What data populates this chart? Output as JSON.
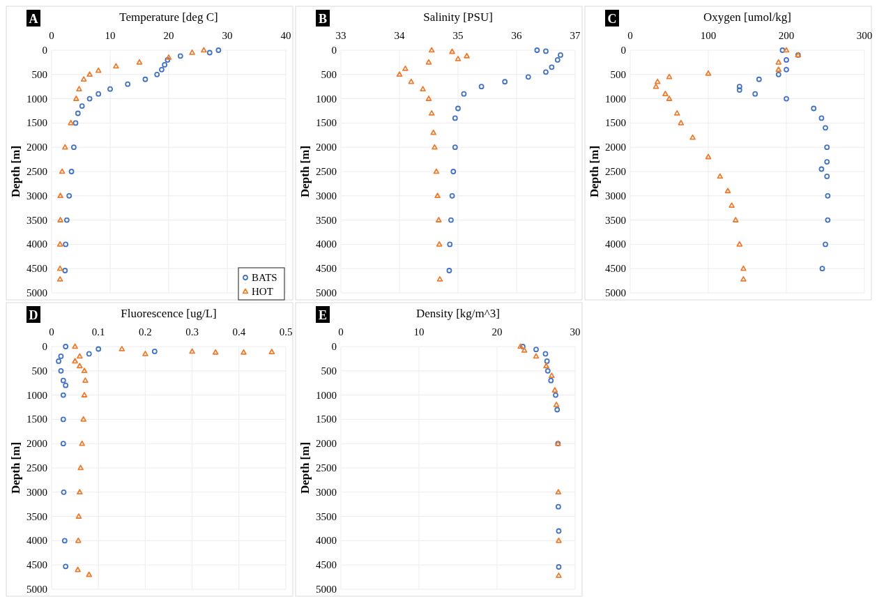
{
  "chart_data": [
    {
      "type": "scatter",
      "title": "Temperature [deg C]",
      "ylabel": "Depth [m]",
      "annotations": [
        "A"
      ],
      "xlim": [
        0,
        40
      ],
      "xticks": [
        0,
        10,
        20,
        30,
        40
      ],
      "ylim": [
        5000,
        0
      ],
      "yticks": [
        0,
        500,
        1000,
        1500,
        2000,
        2500,
        3000,
        3500,
        4000,
        4500,
        5000
      ],
      "grid": true,
      "legend": "bottom right",
      "series": [
        {
          "name": "BATS",
          "color": "#4472c4",
          "marker": "circle",
          "x": [
            28.5,
            27,
            22,
            19.8,
            19.3,
            18.8,
            18,
            16,
            13,
            10,
            8,
            6.5,
            5.2,
            4.5,
            4.1,
            3.8,
            3.4,
            3.0,
            2.6,
            2.4,
            2.3
          ],
          "values": [
            0,
            50,
            120,
            200,
            300,
            400,
            500,
            600,
            700,
            800,
            900,
            1000,
            1150,
            1300,
            1500,
            2000,
            2500,
            3000,
            3500,
            4000,
            4540
          ]
        },
        {
          "name": "HOT",
          "color": "#ed7d31",
          "marker": "triangle",
          "x": [
            26,
            24,
            20,
            15,
            11,
            8,
            6.5,
            5.5,
            4.7,
            4.2,
            3.3,
            2.3,
            1.8,
            1.5,
            1.5,
            1.45,
            1.45,
            1.45
          ],
          "values": [
            0,
            50,
            150,
            250,
            330,
            420,
            500,
            600,
            800,
            1000,
            1500,
            2000,
            2500,
            3000,
            3500,
            4000,
            4500,
            4720
          ]
        }
      ]
    },
    {
      "type": "scatter",
      "title": "Salinity [PSU]",
      "ylabel": "Depth [m]",
      "annotations": [
        "B"
      ],
      "xlim": [
        33,
        37
      ],
      "xticks": [
        33,
        34,
        35,
        36,
        37
      ],
      "ylim": [
        5000,
        0
      ],
      "yticks": [
        0,
        500,
        1000,
        1500,
        2000,
        2500,
        3000,
        3500,
        4000,
        4500,
        5000
      ],
      "grid": true,
      "series": [
        {
          "color": "#4472c4",
          "marker": "circle",
          "x": [
            36.35,
            36.5,
            36.75,
            36.7,
            36.6,
            36.5,
            36.2,
            35.8,
            35.4,
            35.1,
            35.0,
            34.95,
            34.95,
            34.92,
            34.9,
            34.88,
            34.86,
            34.85
          ],
          "values": [
            0,
            20,
            100,
            200,
            350,
            450,
            550,
            650,
            750,
            900,
            1200,
            1400,
            2000,
            2500,
            3000,
            3500,
            4000,
            4540
          ]
        },
        {
          "color": "#ed7d31",
          "marker": "triangle",
          "x": [
            34.55,
            34.9,
            35.15,
            35.0,
            34.5,
            34.1,
            34.0,
            34.2,
            34.4,
            34.5,
            34.55,
            34.58,
            34.6,
            34.63,
            34.65,
            34.67,
            34.68,
            34.69
          ],
          "values": [
            0,
            30,
            120,
            180,
            250,
            380,
            500,
            650,
            800,
            1000,
            1300,
            1700,
            2000,
            2500,
            3000,
            3500,
            4000,
            4720
          ]
        }
      ]
    },
    {
      "type": "scatter",
      "title": "Oxygen [umol/kg]",
      "ylabel": "Depth [m]",
      "annotations": [
        "C"
      ],
      "xlim": [
        0,
        300
      ],
      "xticks": [
        0,
        100,
        200,
        300
      ],
      "ylim": [
        5000,
        0
      ],
      "yticks": [
        0,
        500,
        1000,
        1500,
        2000,
        2500,
        3000,
        3500,
        4000,
        4500,
        5000
      ],
      "grid": true,
      "series": [
        {
          "color": "#4472c4",
          "marker": "circle",
          "x": [
            195,
            215,
            200,
            200,
            190,
            165,
            140,
            140,
            160,
            200,
            235,
            245,
            250,
            252,
            252,
            245,
            252,
            253,
            253,
            250,
            246
          ],
          "values": [
            0,
            100,
            200,
            400,
            500,
            600,
            750,
            820,
            900,
            1000,
            1200,
            1400,
            1600,
            2000,
            2300,
            2450,
            2600,
            3000,
            3500,
            4000,
            4500
          ]
        },
        {
          "color": "#ed7d31",
          "marker": "triangle",
          "x": [
            200,
            215,
            190,
            190,
            100,
            50,
            35,
            33,
            45,
            50,
            60,
            65,
            80,
            100,
            115,
            125,
            130,
            135,
            140,
            145,
            145
          ],
          "values": [
            0,
            100,
            250,
            400,
            480,
            550,
            650,
            750,
            900,
            1000,
            1300,
            1500,
            1800,
            2200,
            2600,
            2900,
            3200,
            3500,
            4000,
            4500,
            4720
          ]
        }
      ]
    },
    {
      "type": "scatter",
      "title": "Fluorescence [ug/L]",
      "ylabel": "Depth [m]",
      "annotations": [
        "D"
      ],
      "xlim": [
        0,
        0.5
      ],
      "xticks": [
        0,
        0.1,
        0.2,
        0.3,
        0.4,
        0.5
      ],
      "ylim": [
        5000,
        0
      ],
      "yticks": [
        0,
        500,
        1000,
        1500,
        2000,
        2500,
        3000,
        3500,
        4000,
        4500,
        5000
      ],
      "grid": true,
      "series": [
        {
          "color": "#4472c4",
          "marker": "circle",
          "x": [
            0.03,
            0.1,
            0.22,
            0.08,
            0.02,
            0.015,
            0.02,
            0.025,
            0.03,
            0.025,
            0.025,
            0.025,
            0.026,
            0.028,
            0.03
          ],
          "values": [
            0,
            50,
            100,
            150,
            200,
            300,
            500,
            700,
            800,
            1000,
            1500,
            2000,
            3000,
            4000,
            4530
          ]
        },
        {
          "color": "#ed7d31",
          "marker": "triangle",
          "x": [
            0.05,
            0.15,
            0.3,
            0.35,
            0.41,
            0.47,
            0.2,
            0.06,
            0.05,
            0.06,
            0.07,
            0.072,
            0.07,
            0.068,
            0.065,
            0.062,
            0.06,
            0.058,
            0.057,
            0.056,
            0.08
          ],
          "values": [
            0,
            50,
            100,
            120,
            120,
            110,
            150,
            200,
            300,
            400,
            500,
            700,
            1000,
            1500,
            2000,
            2500,
            3000,
            3500,
            4000,
            4600,
            4700
          ]
        }
      ]
    },
    {
      "type": "scatter",
      "title": "Density [kg/m^3]",
      "ylabel": "Depth [m]",
      "annotations": [
        "E"
      ],
      "xlim": [
        0,
        30
      ],
      "xticks": [
        0,
        10,
        20,
        30
      ],
      "ylim": [
        5000,
        0
      ],
      "yticks": [
        0,
        500,
        1000,
        1500,
        2000,
        2500,
        3000,
        3500,
        4000,
        4500,
        5000
      ],
      "grid": true,
      "series": [
        {
          "color": "#4472c4",
          "marker": "circle",
          "x": [
            23.3,
            25,
            26.2,
            26.4,
            26.5,
            26.9,
            27.5,
            27.7,
            27.8,
            27.85,
            27.9,
            27.9
          ],
          "values": [
            0,
            60,
            150,
            300,
            500,
            700,
            1000,
            1300,
            2000,
            3300,
            3800,
            4540
          ]
        },
        {
          "color": "#ed7d31",
          "marker": "triangle",
          "x": [
            23,
            23.5,
            25,
            26.3,
            27,
            27.4,
            27.6,
            27.8,
            27.85,
            27.9,
            27.9
          ],
          "values": [
            0,
            80,
            200,
            400,
            600,
            900,
            1200,
            2000,
            3000,
            4000,
            4720
          ]
        }
      ]
    }
  ]
}
